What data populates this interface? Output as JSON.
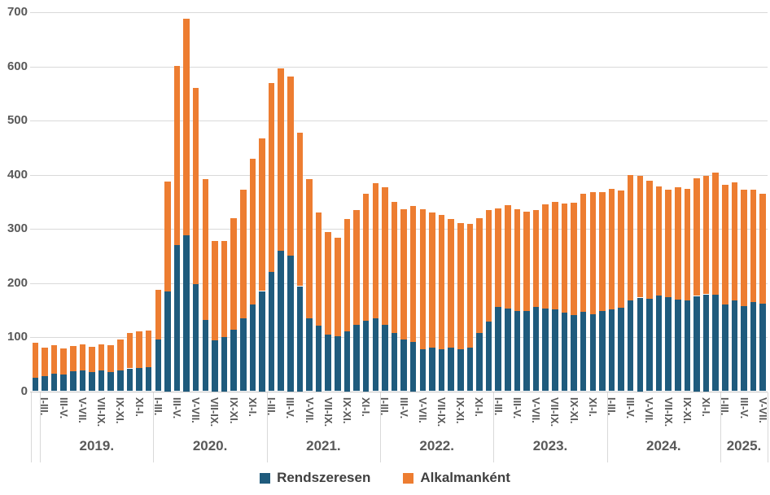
{
  "chart_data": {
    "type": "bar",
    "stacked": true,
    "title": "",
    "xlabel": "",
    "ylabel": "",
    "ylim": [
      0,
      700
    ],
    "yticks": [
      0,
      100,
      200,
      300,
      400,
      500,
      600,
      700
    ],
    "grid": true,
    "legend_position": "bottom",
    "series": [
      {
        "name": "Rendszeresen",
        "color": "#1F5B7D"
      },
      {
        "name": "Alkalmanként",
        "color": "#ED7D31"
      }
    ],
    "bar_format": [
      "period_label",
      "rendszeresen",
      "alkalmankent"
    ],
    "groups": [
      {
        "year": "",
        "bars": [
          [
            "",
            25,
            65
          ]
        ]
      },
      {
        "year": "2019.",
        "bars": [
          [
            "I-III.",
            28,
            53
          ],
          [
            "",
            33,
            52
          ],
          [
            "III-V.",
            31,
            48
          ],
          [
            "",
            37,
            47
          ],
          [
            "V-VII.",
            38,
            49
          ],
          [
            "",
            36,
            46
          ],
          [
            "VII-IX.",
            38,
            48
          ],
          [
            "",
            36,
            49
          ],
          [
            "IX-XI.",
            38,
            58
          ],
          [
            "",
            42,
            65
          ],
          [
            "XI-I.",
            43,
            68
          ],
          [
            "",
            44,
            68
          ]
        ]
      },
      {
        "year": "2020.",
        "bars": [
          [
            "I-III.",
            95,
            93
          ],
          [
            "",
            185,
            203
          ],
          [
            "III-V.",
            270,
            331
          ],
          [
            "",
            288,
            400
          ],
          [
            "V-VII.",
            198,
            362
          ],
          [
            "",
            131,
            261
          ],
          [
            "VII-IX.",
            94,
            184
          ],
          [
            "",
            100,
            178
          ],
          [
            "IX-XI.",
            113,
            206
          ],
          [
            "",
            135,
            237
          ],
          [
            "XI-I.",
            160,
            269
          ],
          [
            "",
            185,
            282
          ]
        ]
      },
      {
        "year": "2021.",
        "bars": [
          [
            "I-III.",
            220,
            349
          ],
          [
            "",
            259,
            338
          ],
          [
            "III-V.",
            250,
            331
          ],
          [
            "",
            194,
            284
          ],
          [
            "V-VII.",
            135,
            257
          ],
          [
            "",
            121,
            209
          ],
          [
            "VII-IX.",
            105,
            189
          ],
          [
            "",
            101,
            182
          ],
          [
            "IX-XI.",
            110,
            208
          ],
          [
            "",
            122,
            213
          ],
          [
            "XI-I.",
            130,
            235
          ],
          [
            "",
            135,
            249
          ]
        ]
      },
      {
        "year": "2022.",
        "bars": [
          [
            "I-III.",
            122,
            255
          ],
          [
            "",
            107,
            243
          ],
          [
            "III-V.",
            95,
            241
          ],
          [
            "",
            91,
            251
          ],
          [
            "V-VII.",
            78,
            258
          ],
          [
            "",
            81,
            249
          ],
          [
            "VII-IX.",
            78,
            247
          ],
          [
            "",
            80,
            238
          ],
          [
            "IX-XI.",
            78,
            233
          ],
          [
            "",
            80,
            229
          ],
          [
            "XI-I.",
            108,
            211
          ],
          [
            "",
            128,
            206
          ]
        ]
      },
      {
        "year": "2023.",
        "bars": [
          [
            "I-III.",
            155,
            182
          ],
          [
            "",
            153,
            190
          ],
          [
            "III-V.",
            148,
            188
          ],
          [
            "",
            148,
            183
          ],
          [
            "V-VII.",
            155,
            179
          ],
          [
            "",
            153,
            192
          ],
          [
            "VII-IX.",
            151,
            198
          ],
          [
            "",
            145,
            202
          ],
          [
            "IX-XI.",
            141,
            207
          ],
          [
            "",
            146,
            218
          ],
          [
            "XI-I.",
            142,
            226
          ],
          [
            "",
            148,
            219
          ]
        ]
      },
      {
        "year": "2024.",
        "bars": [
          [
            "I-III.",
            151,
            223
          ],
          [
            "",
            154,
            217
          ],
          [
            "III-V.",
            167,
            232
          ],
          [
            "",
            173,
            225
          ],
          [
            "V-VII.",
            171,
            218
          ],
          [
            "",
            177,
            201
          ],
          [
            "VII-IX.",
            174,
            198
          ],
          [
            "",
            169,
            208
          ],
          [
            "IX-XI.",
            167,
            207
          ],
          [
            "",
            176,
            217
          ],
          [
            "XI-I.",
            179,
            219
          ],
          [
            "",
            178,
            226
          ]
        ]
      },
      {
        "year": "2025.",
        "bars": [
          [
            "I-III.",
            161,
            221
          ],
          [
            "",
            168,
            218
          ],
          [
            "III-V.",
            157,
            215
          ],
          [
            "",
            165,
            208
          ],
          [
            "V-VII.",
            161,
            203
          ]
        ]
      }
    ]
  }
}
